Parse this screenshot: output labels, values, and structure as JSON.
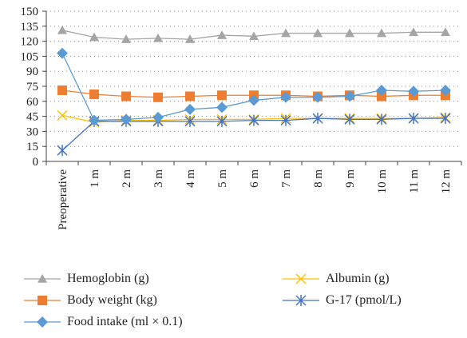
{
  "chart_data": {
    "type": "line",
    "title": "",
    "xlabel": "",
    "ylabel": "",
    "categories": [
      "Preoperative",
      "1 m",
      "2 m",
      "3 m",
      "4 m",
      "5 m",
      "6 m",
      "7 m",
      "8 m",
      "9 m",
      "10 m",
      "11 m",
      "12 m"
    ],
    "ylim": [
      0,
      150
    ],
    "yticks": [
      0,
      15,
      30,
      45,
      60,
      75,
      90,
      105,
      120,
      135,
      150
    ],
    "grid": "horizontal-dotted",
    "legend_position": "bottom",
    "series": [
      {
        "name": "Hemoglobin (g)",
        "color": "#a5a5a5",
        "marker": "triangle",
        "values": [
          131,
          124,
          122,
          123,
          122,
          126,
          125,
          128,
          128,
          128,
          128,
          129,
          129
        ]
      },
      {
        "name": "Albumin (g)",
        "color": "#ffc000",
        "marker": "x",
        "values": [
          46,
          39,
          41,
          41,
          42,
          42,
          42,
          43,
          43,
          43,
          43,
          43,
          44
        ]
      },
      {
        "name": "Body weight (kg)",
        "color": "#ed7d31",
        "marker": "square",
        "values": [
          71,
          67,
          65,
          64,
          65,
          66,
          66,
          66,
          65,
          66,
          65,
          66,
          66
        ]
      },
      {
        "name": "G-17 (pmol/L)",
        "color": "#4472c4",
        "marker": "star",
        "values": [
          11,
          40,
          40,
          40,
          40,
          40,
          41,
          41,
          43,
          42,
          42,
          43,
          43
        ]
      },
      {
        "name": "Food intake (ml × 0.1)",
        "color": "#5b9bd5",
        "marker": "diamond",
        "values": [
          108,
          41,
          42,
          44,
          52,
          54,
          61,
          64,
          64,
          65,
          71,
          70,
          71
        ]
      }
    ]
  }
}
